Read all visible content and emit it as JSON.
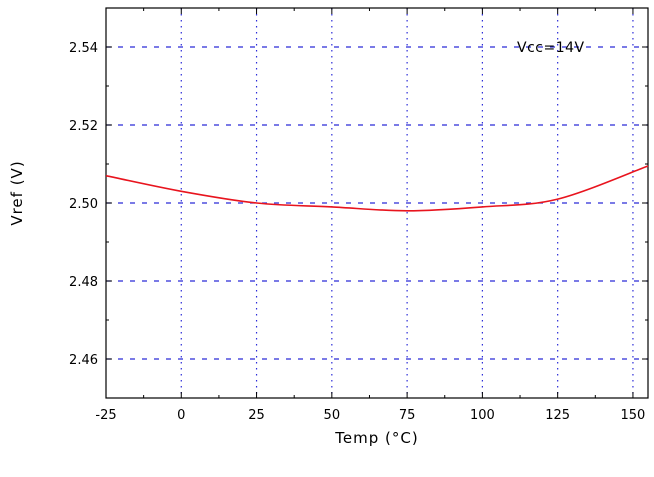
{
  "chart_data": {
    "type": "line",
    "title": "",
    "xlabel": "Temp (°C)",
    "ylabel": "Vref (V)",
    "xlim": [
      -25,
      155
    ],
    "ylim": [
      2.45,
      2.55
    ],
    "x_ticks": [
      -25,
      0,
      25,
      50,
      75,
      100,
      125,
      150
    ],
    "y_ticks": [
      2.46,
      2.48,
      2.5,
      2.52,
      2.54
    ],
    "x_tick_labels": [
      "-25",
      "0",
      "25",
      "50",
      "75",
      "100",
      "125",
      "150"
    ],
    "y_tick_labels": [
      "2.46",
      "2.48",
      "2.50",
      "2.52",
      "2.54"
    ],
    "grid": true,
    "legend": "none",
    "annotation": "Vcc=14V",
    "series": [
      {
        "color": "#e8141e",
        "x": [
          -25,
          0,
          25,
          50,
          75,
          100,
          125,
          155
        ],
        "y": [
          2.507,
          2.503,
          2.5,
          2.499,
          2.498,
          2.499,
          2.501,
          2.5095
        ]
      }
    ],
    "colors": {
      "grid": "#2b2bd8",
      "axis": "#000000"
    }
  }
}
